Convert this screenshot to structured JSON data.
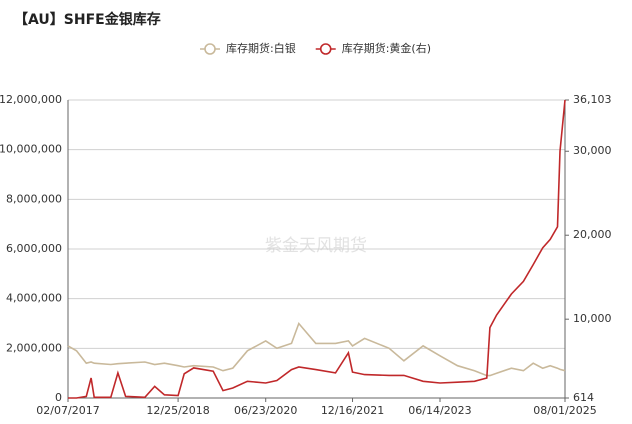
{
  "chart_data": {
    "type": "line",
    "title": "【AU】SHFE金银库存",
    "watermark": "紫金天风期货",
    "x": [
      "2017-02-07",
      "2017-04-01",
      "2017-06-01",
      "2017-07-01",
      "2017-07-20",
      "2017-11-01",
      "2017-12-15",
      "2018-02-01",
      "2018-06-01",
      "2018-08-01",
      "2018-10-01",
      "2018-12-25",
      "2019-02-01",
      "2019-04-01",
      "2019-08-01",
      "2019-10-01",
      "2019-12-01",
      "2020-03-01",
      "2020-06-23",
      "2020-09-01",
      "2020-12-01",
      "2021-01-15",
      "2021-05-01",
      "2021-09-01",
      "2021-11-20",
      "2021-12-16",
      "2022-03-01",
      "2022-08-01",
      "2022-11-01",
      "2023-03-01",
      "2023-06-14",
      "2023-10-01",
      "2024-01-15",
      "2024-04-01",
      "2024-04-20",
      "2024-06-01",
      "2024-09-01",
      "2024-11-15",
      "2025-01-15",
      "2025-03-15",
      "2025-05-01",
      "2025-06-15",
      "2025-07-01",
      "2025-08-01"
    ],
    "series": [
      {
        "name": "库存期货:白银",
        "color": "#c9b99b",
        "axis": "y",
        "values": [
          2100000,
          1900000,
          1400000,
          1450000,
          1400000,
          1350000,
          1380000,
          1400000,
          1450000,
          1350000,
          1400000,
          1300000,
          1250000,
          1300000,
          1250000,
          1100000,
          1200000,
          1900000,
          2300000,
          2000000,
          2200000,
          3000000,
          2200000,
          2200000,
          2300000,
          2100000,
          2400000,
          2000000,
          1500000,
          2100000,
          1700000,
          1300000,
          1100000,
          900000,
          900000,
          1000000,
          1200000,
          1100000,
          1400000,
          1200000,
          1300000,
          1200000,
          1150000,
          1100000
        ]
      },
      {
        "name": "库存期货:黄金(右)",
        "color": "#c0282a",
        "axis": "y2",
        "values": [
          614,
          614,
          800,
          3000,
          700,
          700,
          3600,
          800,
          700,
          2000,
          1000,
          900,
          3500,
          4200,
          3800,
          1500,
          1800,
          2600,
          2400,
          2700,
          4000,
          4300,
          4000,
          3600,
          6000,
          3700,
          3400,
          3300,
          3300,
          2600,
          2400,
          2500,
          2600,
          3000,
          9000,
          10500,
          13000,
          14500,
          16500,
          18500,
          19500,
          21000,
          30000,
          36103
        ]
      }
    ],
    "xlim": [
      "2017-02-07",
      "2025-08-01"
    ],
    "xticks": [
      {
        "value": "2017-02-07",
        "label": "02/07/2017"
      },
      {
        "value": "2018-12-25",
        "label": "12/25/2018"
      },
      {
        "value": "2020-06-23",
        "label": "06/23/2020"
      },
      {
        "value": "2021-12-16",
        "label": "12/16/2021"
      },
      {
        "value": "2023-06-14",
        "label": "06/14/2023"
      },
      {
        "value": "2025-08-01",
        "label": "08/01/2025"
      }
    ],
    "ylim": [
      0,
      12000000
    ],
    "yticks": [
      0,
      {
        "value": 2000000,
        "label": "2,000,000"
      },
      {
        "value": 4000000,
        "label": "4,000,000"
      },
      {
        "value": 6000000,
        "label": "6,000,000"
      },
      {
        "value": 8000000,
        "label": "8,000,000"
      },
      {
        "value": 10000000,
        "label": "10,000,000"
      },
      {
        "value": 12000000,
        "label": "12,000,000"
      }
    ],
    "y2lim": [
      614,
      36103
    ],
    "y2ticks": [
      614,
      {
        "value": 10000,
        "label": "10,000"
      },
      {
        "value": 20000,
        "label": "20,000"
      },
      {
        "value": 30000,
        "label": "30,000"
      },
      {
        "value": 36103,
        "label": "36,103"
      }
    ],
    "grid": true
  }
}
